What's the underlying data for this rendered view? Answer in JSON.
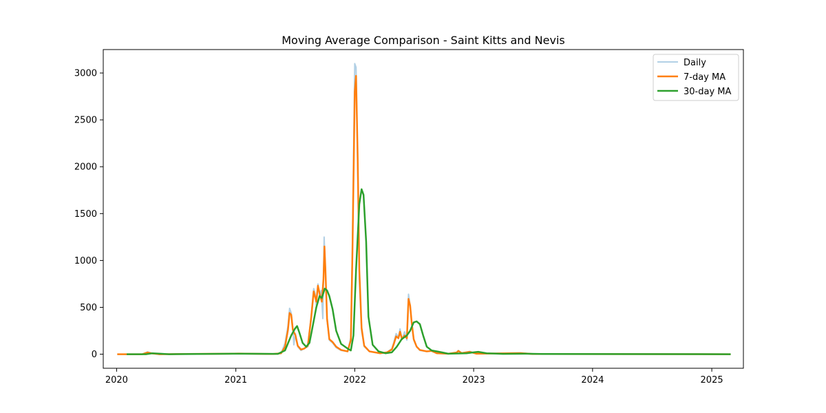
{
  "chart_data": {
    "type": "line",
    "title": "Moving Average Comparison - Saint Kitts and Nevis",
    "xlabel": "",
    "ylabel": "",
    "x_range": [
      "2019-11-21",
      "2025-04-08"
    ],
    "ylim": [
      -150,
      3250
    ],
    "x_ticks": [
      {
        "label": "2020",
        "date": "2020-01-01"
      },
      {
        "label": "2021",
        "date": "2021-01-01"
      },
      {
        "label": "2022",
        "date": "2022-01-01"
      },
      {
        "label": "2023",
        "date": "2023-01-01"
      },
      {
        "label": "2024",
        "date": "2024-01-01"
      },
      {
        "label": "2025",
        "date": "2025-01-01"
      }
    ],
    "y_ticks": [
      0,
      500,
      1000,
      1500,
      2000,
      2500,
      3000
    ],
    "grid": false,
    "legend_position": "top-right",
    "series": [
      {
        "name": "Daily",
        "color": "#1f77b4",
        "points": [
          [
            "2020-01-03",
            0
          ],
          [
            "2020-03-20",
            0
          ],
          [
            "2020-04-05",
            25
          ],
          [
            "2020-04-20",
            8
          ],
          [
            "2020-05-10",
            0
          ],
          [
            "2020-09-01",
            3
          ],
          [
            "2020-12-10",
            5
          ],
          [
            "2021-01-10",
            8
          ],
          [
            "2021-04-25",
            2
          ],
          [
            "2021-05-20",
            10
          ],
          [
            "2021-06-01",
            120
          ],
          [
            "2021-06-10",
            300
          ],
          [
            "2021-06-15",
            490
          ],
          [
            "2021-06-20",
            440
          ],
          [
            "2021-06-25",
            280
          ],
          [
            "2021-06-28",
            100
          ],
          [
            "2021-07-03",
            220
          ],
          [
            "2021-07-10",
            80
          ],
          [
            "2021-07-20",
            40
          ],
          [
            "2021-07-30",
            60
          ],
          [
            "2021-08-10",
            80
          ],
          [
            "2021-08-20",
            400
          ],
          [
            "2021-08-28",
            700
          ],
          [
            "2021-09-01",
            650
          ],
          [
            "2021-09-05",
            520
          ],
          [
            "2021-09-10",
            750
          ],
          [
            "2021-09-15",
            620
          ],
          [
            "2021-09-20",
            680
          ],
          [
            "2021-09-25",
            380
          ],
          [
            "2021-09-29",
            1250
          ],
          [
            "2021-10-03",
            900
          ],
          [
            "2021-10-08",
            360
          ],
          [
            "2021-10-15",
            150
          ],
          [
            "2021-10-25",
            120
          ],
          [
            "2021-11-05",
            70
          ],
          [
            "2021-11-20",
            40
          ],
          [
            "2021-12-10",
            30
          ],
          [
            "2021-12-20",
            180
          ],
          [
            "2021-12-25",
            1200
          ],
          [
            "2022-01-01",
            3100
          ],
          [
            "2022-01-05",
            3060
          ],
          [
            "2022-01-10",
            2000
          ],
          [
            "2022-01-15",
            800
          ],
          [
            "2022-01-22",
            250
          ],
          [
            "2022-01-30",
            80
          ],
          [
            "2022-02-15",
            30
          ],
          [
            "2022-03-20",
            10
          ],
          [
            "2022-04-10",
            20
          ],
          [
            "2022-04-25",
            60
          ],
          [
            "2022-05-01",
            130
          ],
          [
            "2022-05-08",
            220
          ],
          [
            "2022-05-15",
            180
          ],
          [
            "2022-05-20",
            270
          ],
          [
            "2022-05-26",
            160
          ],
          [
            "2022-06-03",
            240
          ],
          [
            "2022-06-10",
            150
          ],
          [
            "2022-06-15",
            640
          ],
          [
            "2022-06-20",
            520
          ],
          [
            "2022-06-25",
            320
          ],
          [
            "2022-07-01",
            150
          ],
          [
            "2022-07-10",
            80
          ],
          [
            "2022-07-20",
            40
          ],
          [
            "2022-08-10",
            30
          ],
          [
            "2022-08-25",
            40
          ],
          [
            "2022-09-10",
            10
          ],
          [
            "2022-10-15",
            5
          ],
          [
            "2022-11-10",
            20
          ],
          [
            "2022-11-15",
            40
          ],
          [
            "2022-11-25",
            10
          ],
          [
            "2022-12-20",
            30
          ],
          [
            "2023-01-10",
            5
          ],
          [
            "2023-05-25",
            15
          ],
          [
            "2023-07-01",
            2
          ],
          [
            "2025-02-28",
            0
          ]
        ]
      },
      {
        "name": "7-day MA",
        "color": "#ff7f0e",
        "points": [
          [
            "2020-01-03",
            0
          ],
          [
            "2020-03-20",
            0
          ],
          [
            "2020-04-05",
            18
          ],
          [
            "2020-04-20",
            8
          ],
          [
            "2020-05-10",
            0
          ],
          [
            "2020-09-01",
            3
          ],
          [
            "2020-12-10",
            5
          ],
          [
            "2021-01-10",
            7
          ],
          [
            "2021-04-25",
            2
          ],
          [
            "2021-05-20",
            10
          ],
          [
            "2021-06-01",
            80
          ],
          [
            "2021-06-10",
            260
          ],
          [
            "2021-06-15",
            440
          ],
          [
            "2021-06-20",
            420
          ],
          [
            "2021-06-25",
            260
          ],
          [
            "2021-07-03",
            200
          ],
          [
            "2021-07-10",
            90
          ],
          [
            "2021-07-20",
            50
          ],
          [
            "2021-07-30",
            60
          ],
          [
            "2021-08-10",
            90
          ],
          [
            "2021-08-20",
            380
          ],
          [
            "2021-08-28",
            670
          ],
          [
            "2021-09-05",
            560
          ],
          [
            "2021-09-10",
            730
          ],
          [
            "2021-09-15",
            650
          ],
          [
            "2021-09-22",
            560
          ],
          [
            "2021-09-27",
            800
          ],
          [
            "2021-09-30",
            1150
          ],
          [
            "2021-10-03",
            900
          ],
          [
            "2021-10-08",
            380
          ],
          [
            "2021-10-15",
            160
          ],
          [
            "2021-10-25",
            130
          ],
          [
            "2021-11-05",
            80
          ],
          [
            "2021-11-20",
            45
          ],
          [
            "2021-12-10",
            30
          ],
          [
            "2021-12-20",
            150
          ],
          [
            "2021-12-25",
            1100
          ],
          [
            "2022-01-01",
            2800
          ],
          [
            "2022-01-05",
            2970
          ],
          [
            "2022-01-10",
            2100
          ],
          [
            "2022-01-15",
            900
          ],
          [
            "2022-01-22",
            280
          ],
          [
            "2022-01-30",
            90
          ],
          [
            "2022-02-15",
            30
          ],
          [
            "2022-03-20",
            10
          ],
          [
            "2022-04-10",
            20
          ],
          [
            "2022-04-25",
            50
          ],
          [
            "2022-05-01",
            110
          ],
          [
            "2022-05-08",
            190
          ],
          [
            "2022-05-15",
            170
          ],
          [
            "2022-05-20",
            240
          ],
          [
            "2022-05-26",
            160
          ],
          [
            "2022-06-03",
            200
          ],
          [
            "2022-06-10",
            170
          ],
          [
            "2022-06-15",
            590
          ],
          [
            "2022-06-20",
            520
          ],
          [
            "2022-06-25",
            330
          ],
          [
            "2022-07-01",
            160
          ],
          [
            "2022-07-10",
            80
          ],
          [
            "2022-07-20",
            45
          ],
          [
            "2022-08-10",
            30
          ],
          [
            "2022-08-25",
            35
          ],
          [
            "2022-09-10",
            10
          ],
          [
            "2022-10-15",
            5
          ],
          [
            "2022-11-10",
            18
          ],
          [
            "2022-11-15",
            35
          ],
          [
            "2022-11-25",
            12
          ],
          [
            "2022-12-20",
            25
          ],
          [
            "2023-01-10",
            5
          ],
          [
            "2023-05-25",
            12
          ],
          [
            "2023-07-01",
            2
          ],
          [
            "2025-02-28",
            0
          ]
        ]
      },
      {
        "name": "30-day MA",
        "color": "#2ca02c",
        "points": [
          [
            "2020-02-01",
            0
          ],
          [
            "2020-04-01",
            0
          ],
          [
            "2020-04-20",
            10
          ],
          [
            "2020-05-15",
            5
          ],
          [
            "2020-06-10",
            0
          ],
          [
            "2020-12-20",
            5
          ],
          [
            "2021-01-20",
            5
          ],
          [
            "2021-05-10",
            3
          ],
          [
            "2021-06-01",
            40
          ],
          [
            "2021-06-20",
            200
          ],
          [
            "2021-07-01",
            270
          ],
          [
            "2021-07-08",
            300
          ],
          [
            "2021-07-15",
            230
          ],
          [
            "2021-07-25",
            120
          ],
          [
            "2021-08-05",
            80
          ],
          [
            "2021-08-15",
            120
          ],
          [
            "2021-08-25",
            300
          ],
          [
            "2021-09-05",
            500
          ],
          [
            "2021-09-15",
            620
          ],
          [
            "2021-09-22",
            600
          ],
          [
            "2021-10-01",
            700
          ],
          [
            "2021-10-08",
            680
          ],
          [
            "2021-10-15",
            620
          ],
          [
            "2021-10-25",
            480
          ],
          [
            "2021-11-05",
            250
          ],
          [
            "2021-11-20",
            110
          ],
          [
            "2021-12-10",
            60
          ],
          [
            "2021-12-20",
            40
          ],
          [
            "2021-12-28",
            200
          ],
          [
            "2022-01-05",
            900
          ],
          [
            "2022-01-15",
            1600
          ],
          [
            "2022-01-22",
            1760
          ],
          [
            "2022-01-28",
            1700
          ],
          [
            "2022-02-05",
            1200
          ],
          [
            "2022-02-12",
            400
          ],
          [
            "2022-02-25",
            100
          ],
          [
            "2022-03-15",
            30
          ],
          [
            "2022-04-05",
            10
          ],
          [
            "2022-04-25",
            20
          ],
          [
            "2022-05-10",
            80
          ],
          [
            "2022-05-25",
            160
          ],
          [
            "2022-06-10",
            200
          ],
          [
            "2022-06-20",
            250
          ],
          [
            "2022-07-01",
            340
          ],
          [
            "2022-07-10",
            350
          ],
          [
            "2022-07-20",
            320
          ],
          [
            "2022-07-30",
            200
          ],
          [
            "2022-08-10",
            80
          ],
          [
            "2022-08-25",
            40
          ],
          [
            "2022-09-10",
            30
          ],
          [
            "2022-09-25",
            20
          ],
          [
            "2022-10-15",
            5
          ],
          [
            "2022-12-10",
            10
          ],
          [
            "2023-01-01",
            20
          ],
          [
            "2023-01-15",
            25
          ],
          [
            "2023-02-10",
            10
          ],
          [
            "2023-04-01",
            3
          ],
          [
            "2023-06-10",
            5
          ],
          [
            "2023-08-01",
            2
          ],
          [
            "2025-02-28",
            0
          ]
        ]
      }
    ]
  }
}
